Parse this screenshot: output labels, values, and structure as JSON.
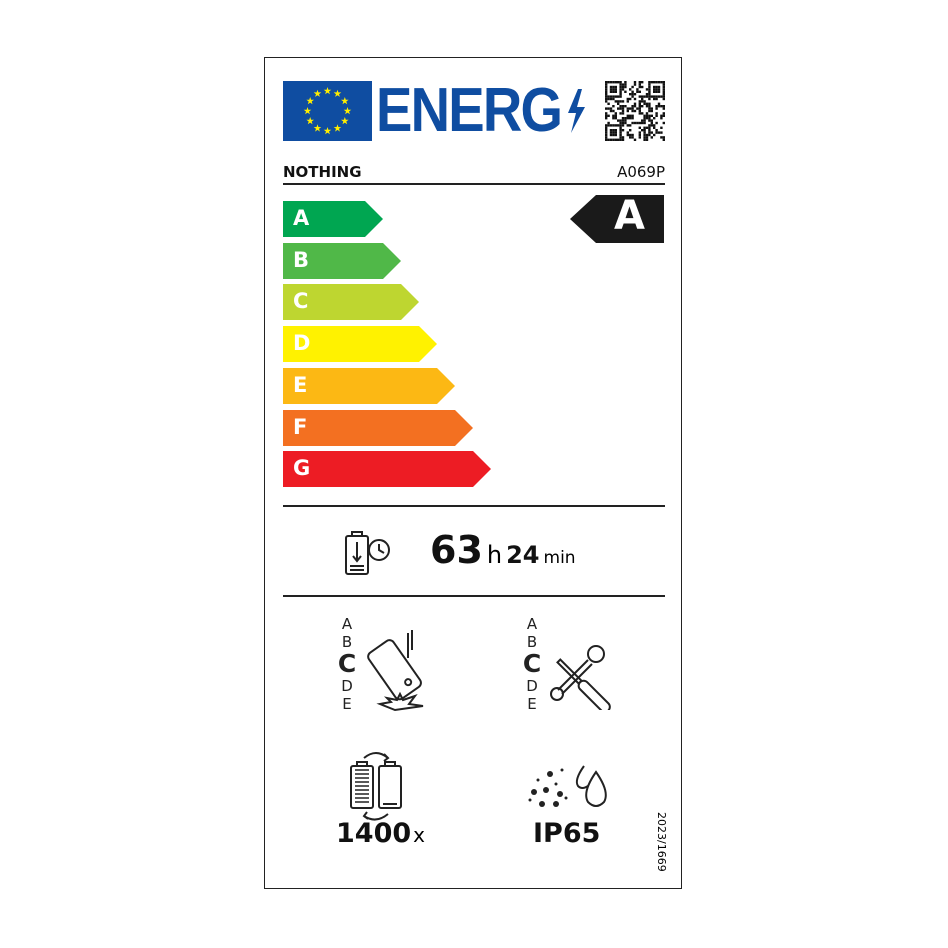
{
  "header": {
    "logo_text": "ENERG",
    "brand": "NOTHING",
    "model": "A069P"
  },
  "scale": {
    "classes": [
      {
        "letter": "A",
        "color": "#00a651"
      },
      {
        "letter": "B",
        "color": "#50b848"
      },
      {
        "letter": "C",
        "color": "#bed630"
      },
      {
        "letter": "D",
        "color": "#fff200"
      },
      {
        "letter": "E",
        "color": "#fcb814"
      },
      {
        "letter": "F",
        "color": "#f37021"
      },
      {
        "letter": "G",
        "color": "#ed1c24"
      }
    ],
    "rating": "A"
  },
  "battery_life": {
    "hours": "63",
    "h_unit": "h",
    "minutes": "24",
    "min_unit": "min",
    "icon": "battery-clock-icon"
  },
  "drop_resistance": {
    "classes": [
      "A",
      "B",
      "C",
      "D",
      "E"
    ],
    "rating": "C",
    "icon": "phone-drop-icon"
  },
  "repairability": {
    "classes": [
      "A",
      "B",
      "C",
      "D",
      "E"
    ],
    "rating": "C",
    "icon": "wrench-screwdriver-icon"
  },
  "battery_cycles": {
    "value": "1400",
    "unit": "x",
    "icon": "battery-cycle-icon"
  },
  "ingress": {
    "value": "IP65",
    "icon": "dust-water-icon"
  },
  "regulation": "2023/1669"
}
